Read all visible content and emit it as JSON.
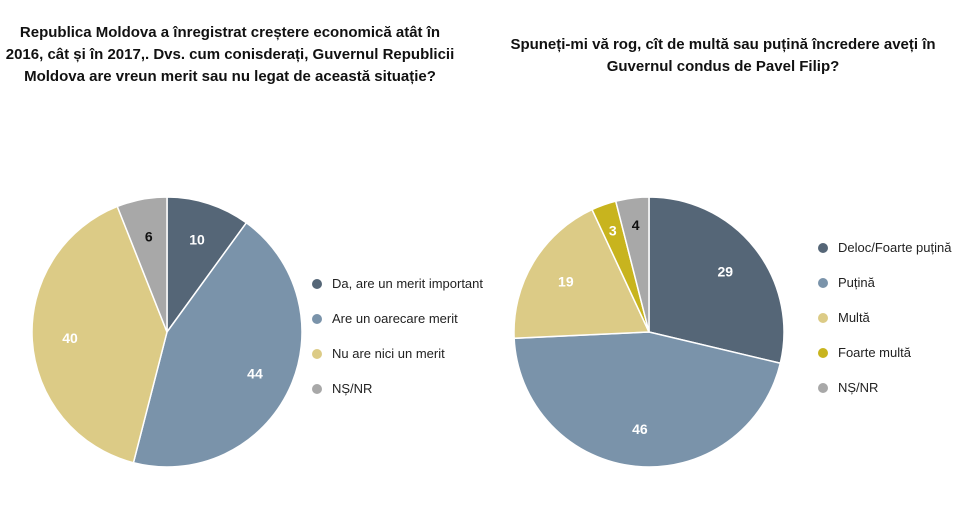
{
  "chart_data": [
    {
      "type": "pie",
      "title": "Republica Moldova a înregistrat creștere economică atât în 2016, cât și în 2017,. Dvs. cum conisderați, Guvernul Republicii Moldova are vreun merit sau nu legat de această situație?",
      "categories": [
        "Da, are un merit important",
        "Are un oarecare merit",
        "Nu are nici un merit",
        "NȘ/NR"
      ],
      "values": [
        10,
        44,
        40,
        6
      ],
      "colors": [
        "#556677",
        "#7A93AA",
        "#DCCB86",
        "#A8A8A8"
      ],
      "label_colors": [
        "#ffffff",
        "#ffffff",
        "#ffffff",
        "#111111"
      ],
      "legend_position": "right"
    },
    {
      "type": "pie",
      "title": "Spuneți-mi vă rog, cît de multă sau puțină încredere aveți în Guvernul condus de Pavel Filip?",
      "categories": [
        "Deloc/Foarte puțină",
        "Puțină",
        "Multă",
        "Foarte multă",
        "NȘ/NR"
      ],
      "values": [
        29,
        46,
        19,
        3,
        4
      ],
      "colors": [
        "#556677",
        "#7A93AA",
        "#DCCB86",
        "#C8B41E",
        "#A8A8A8"
      ],
      "label_colors": [
        "#ffffff",
        "#ffffff",
        "#ffffff",
        "#ffffff",
        "#111111"
      ],
      "legend_position": "right"
    }
  ]
}
